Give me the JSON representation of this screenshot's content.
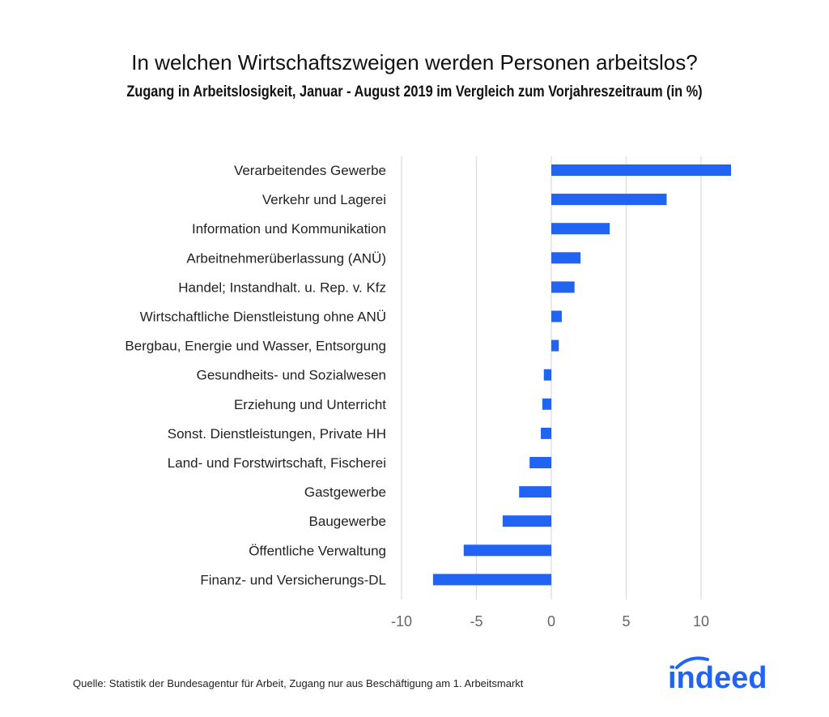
{
  "chart_data": {
    "type": "bar",
    "orientation": "horizontal",
    "title": "In welchen Wirtschaftszweigen werden Personen arbeitslos?",
    "subtitle": "Zugang in Arbeitslosigkeit, Januar - August 2019 im Vergleich zum Vorjahreszeitraum (in %)",
    "categories": [
      "Verarbeitendes Gewerbe",
      "Verkehr und Lagerei",
      "Information und Kommunikation",
      "Arbeitnehmerüberlassung (ANÜ)",
      "Handel; Instandhalt. u. Rep. v. Kfz",
      "Wirtschaftliche Dienstleistung ohne ANÜ",
      "Bergbau, Energie und Wasser, Entsorgung",
      "Gesundheits- und Sozialwesen",
      "Erziehung und Unterricht",
      "Sonst. Dienstleistungen, Private HH",
      "Land- und Forstwirtschaft, Fischerei",
      "Gastgewerbe",
      "Baugewerbe",
      "Öffentliche Verwaltung",
      "Finanz- und Versicherungs-DL"
    ],
    "values": [
      12.0,
      7.7,
      3.9,
      1.95,
      1.55,
      0.7,
      0.5,
      -0.5,
      -0.6,
      -0.7,
      -1.45,
      -2.15,
      -3.25,
      -5.85,
      -7.9
    ],
    "xticks": [
      "-10",
      "-5",
      "0",
      "5",
      "10"
    ],
    "xlim": [
      -10,
      12
    ],
    "grid": true,
    "bar_color": "#2164f3",
    "grid_color": "#dddddd"
  },
  "source": "Quelle: Statistik der Bundesagentur für Arbeit, Zugang nur aus Beschäftigung am 1. Arbeitsmarkt",
  "logo": {
    "text": "indeed",
    "color": "#2164f3"
  }
}
